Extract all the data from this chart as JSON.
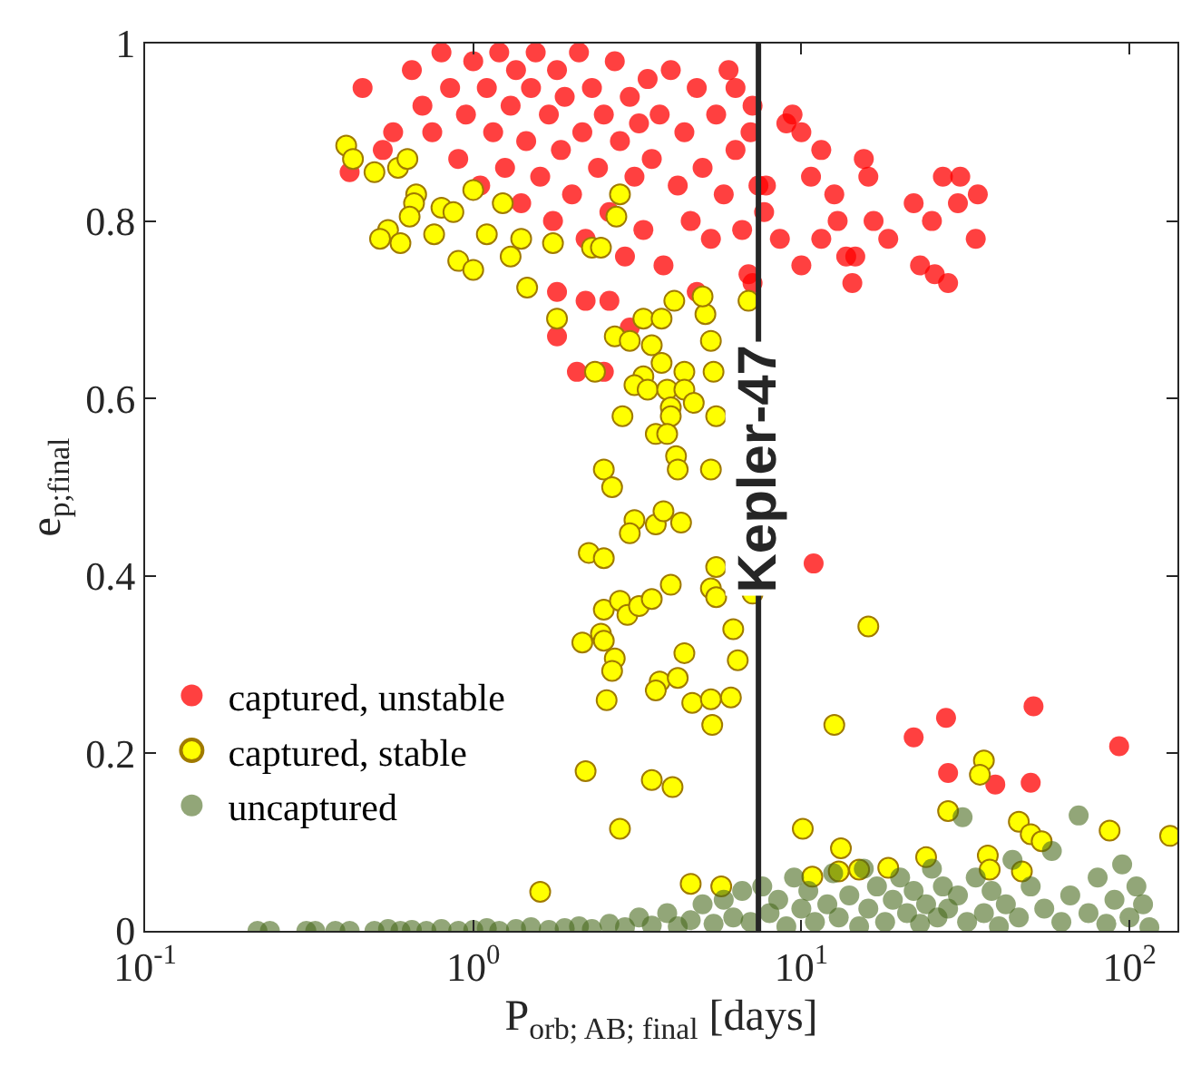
{
  "chart_data": {
    "type": "scatter",
    "xlabel": "P$_{orb; AB; final}$ [days]",
    "ylabel": "e$_{p;final}$",
    "log": "x",
    "xlim": [
      0.1,
      140
    ],
    "ylim": [
      0,
      1
    ],
    "xticks": [
      {
        "value": 0.1,
        "label": "10$^{-1}$"
      },
      {
        "value": 1,
        "label": "10$^{0}$"
      },
      {
        "value": 10,
        "label": "10$^{1}$"
      },
      {
        "value": 100,
        "label": "10$^{2}$"
      }
    ],
    "yticks": [
      0,
      0.2,
      0.4,
      0.6,
      0.8,
      1
    ],
    "grid": false,
    "legend": "bottom left",
    "marker": "circle",
    "ref_lines": [
      {
        "axis": "x",
        "value": 7.4,
        "label": "Kepler-47",
        "color": "#262626"
      }
    ],
    "series": [
      {
        "name": "captured, unstable",
        "color": "#ff0000",
        "x": [
          0.46,
          0.42,
          0.53,
          0.57,
          0.65,
          0.7,
          0.75,
          0.8,
          0.85,
          0.9,
          0.95,
          1.0,
          1.05,
          1.1,
          1.15,
          1.2,
          1.25,
          1.3,
          1.35,
          1.4,
          1.45,
          1.5,
          1.55,
          1.6,
          1.7,
          1.75,
          1.8,
          1.85,
          1.9,
          2.0,
          2.1,
          2.15,
          2.2,
          2.3,
          2.4,
          2.5,
          2.6,
          2.7,
          2.8,
          2.9,
          3.0,
          3.1,
          3.2,
          3.3,
          3.4,
          3.5,
          3.7,
          3.8,
          4.0,
          4.2,
          4.4,
          4.6,
          4.8,
          5.0,
          5.3,
          5.5,
          5.8,
          6.0,
          6.3,
          6.6,
          7.0,
          7.4,
          1.8,
          2.07,
          2.2,
          2.6,
          3.0,
          2.5,
          4.8,
          6.9,
          1.8,
          15.5,
          27,
          30.5,
          34.5,
          30,
          34,
          25,
          28,
          25.5,
          23,
          22,
          18.4,
          16.6,
          14.3,
          14.6,
          12.6,
          11.5,
          10,
          9,
          9.4,
          6.3,
          7.1,
          10.7,
          11.5,
          10,
          8.6,
          7.1,
          7.7,
          7.8,
          13.7,
          16,
          12.9,
          10.9,
          22,
          27.6,
          28,
          39,
          50,
          51,
          93
        ],
        "values": [
          0.95,
          0.855,
          0.88,
          0.9,
          0.97,
          0.93,
          0.9,
          0.99,
          0.95,
          0.87,
          0.92,
          0.98,
          0.84,
          0.95,
          0.9,
          0.99,
          0.86,
          0.93,
          0.97,
          0.82,
          0.89,
          0.95,
          0.99,
          0.85,
          0.92,
          0.8,
          0.97,
          0.88,
          0.94,
          0.83,
          0.99,
          0.9,
          0.78,
          0.95,
          0.86,
          0.92,
          0.81,
          0.98,
          0.89,
          0.76,
          0.94,
          0.85,
          0.91,
          0.79,
          0.96,
          0.87,
          0.92,
          0.75,
          0.97,
          0.84,
          0.9,
          0.8,
          0.95,
          0.86,
          0.78,
          0.92,
          0.83,
          0.97,
          0.88,
          0.79,
          0.9,
          0.84,
          0.67,
          0.63,
          0.71,
          0.71,
          0.68,
          0.63,
          0.72,
          0.74,
          0.72,
          0.87,
          0.85,
          0.85,
          0.83,
          0.82,
          0.78,
          0.8,
          0.73,
          0.74,
          0.75,
          0.82,
          0.78,
          0.8,
          0.73,
          0.76,
          0.83,
          0.88,
          0.9,
          0.91,
          0.92,
          0.95,
          0.93,
          0.85,
          0.78,
          0.75,
          0.78,
          0.73,
          0.81,
          0.84,
          0.76,
          0.85,
          0.8,
          0.414,
          0.218,
          0.24,
          0.178,
          0.165,
          0.167,
          0.253,
          0.208
        ]
      },
      {
        "name": "captured, stable",
        "color": "#ffff00",
        "x": [
          0.41,
          0.43,
          0.5,
          0.59,
          0.63,
          0.67,
          0.66,
          0.64,
          0.55,
          0.52,
          0.6,
          0.76,
          0.9,
          1.0,
          0.8,
          0.87,
          1.0,
          1.1,
          1.3,
          1.4,
          1.23,
          1.46,
          1.75,
          1.8,
          2.3,
          2.45,
          2.8,
          2.73,
          2.7,
          3.0,
          3.3,
          3.5,
          3.75,
          4.1,
          5.1,
          5.3,
          5.0,
          5.4,
          3.75,
          3.3,
          3.1,
          3.4,
          3.9,
          4.4,
          4.4,
          4.0,
          4.7,
          2.85,
          5.5,
          4.0,
          3.6,
          3.9,
          4.15,
          4.2,
          5.3,
          2.5,
          2.65,
          6.9,
          2.35,
          3.1,
          3.0,
          3.6,
          3.8,
          4.3,
          2.25,
          2.5,
          5.5,
          5.3,
          5.5,
          2.5,
          2.8,
          2.95,
          3.2,
          3.5,
          4.0,
          2.45,
          2.15,
          2.5,
          2.7,
          2.65,
          4.4,
          6.2,
          6.4,
          3.7,
          3.6,
          4.2,
          2.55,
          4.65,
          5.3,
          6.1,
          5.35,
          2.2,
          3.5,
          4.05,
          2.8,
          1.6,
          4.6,
          5.7,
          7.1,
          16,
          12.6,
          10.1,
          13.2,
          10.8,
          13,
          15,
          18.4,
          24,
          28,
          36,
          35,
          46,
          50,
          54,
          37,
          37.5,
          47,
          87,
          133
        ],
        "values": [
          0.885,
          0.87,
          0.855,
          0.86,
          0.87,
          0.83,
          0.82,
          0.805,
          0.79,
          0.78,
          0.775,
          0.785,
          0.755,
          0.745,
          0.815,
          0.81,
          0.835,
          0.785,
          0.76,
          0.78,
          0.82,
          0.725,
          0.775,
          0.69,
          0.77,
          0.77,
          0.83,
          0.805,
          0.67,
          0.665,
          0.69,
          0.66,
          0.69,
          0.71,
          0.695,
          0.665,
          0.715,
          0.63,
          0.64,
          0.625,
          0.615,
          0.61,
          0.61,
          0.63,
          0.61,
          0.59,
          0.595,
          0.58,
          0.58,
          0.58,
          0.56,
          0.56,
          0.535,
          0.52,
          0.52,
          0.52,
          0.5,
          0.71,
          0.63,
          0.463,
          0.448,
          0.458,
          0.473,
          0.46,
          0.426,
          0.42,
          0.41,
          0.386,
          0.376,
          0.362,
          0.372,
          0.356,
          0.366,
          0.374,
          0.39,
          0.335,
          0.325,
          0.327,
          0.307,
          0.293,
          0.313,
          0.34,
          0.305,
          0.281,
          0.271,
          0.285,
          0.26,
          0.257,
          0.261,
          0.263,
          0.232,
          0.18,
          0.17,
          0.162,
          0.115,
          0.044,
          0.053,
          0.05,
          0.38,
          0.343,
          0.232,
          0.115,
          0.093,
          0.061,
          0.067,
          0.069,
          0.071,
          0.083,
          0.135,
          0.192,
          0.176,
          0.123,
          0.109,
          0.101,
          0.085,
          0.069,
          0.067,
          0.113,
          0.107
        ]
      },
      {
        "name": "uncaptured",
        "color": "#4a6b1e",
        "x": [
          0.22,
          0.24,
          0.31,
          0.33,
          0.38,
          0.42,
          0.5,
          0.55,
          0.6,
          0.65,
          0.72,
          0.8,
          0.9,
          1.0,
          1.1,
          1.2,
          1.35,
          1.5,
          1.7,
          1.9,
          2.1,
          2.3,
          2.6,
          2.9,
          3.2,
          3.5,
          3.9,
          4.2,
          4.6,
          5.0,
          5.4,
          5.8,
          6.2,
          6.6,
          7.0,
          7.6,
          8.0,
          8.5,
          9.0,
          9.5,
          10,
          10.5,
          11,
          12,
          12.5,
          13,
          14,
          15,
          15.5,
          16,
          17,
          18,
          19,
          20,
          21,
          22,
          23,
          24,
          25,
          26,
          27,
          28,
          30,
          31,
          32,
          34,
          36,
          38,
          40,
          42,
          44,
          46,
          50,
          55,
          58,
          62,
          66,
          70,
          75,
          80,
          85,
          90,
          95,
          100,
          105,
          110,
          115
        ],
        "values": [
          0,
          0,
          0,
          0,
          0,
          0,
          0,
          0.002,
          0,
          0.001,
          0,
          0.002,
          0,
          0.001,
          0.003,
          0,
          0.002,
          0.004,
          0.001,
          0.003,
          0.005,
          0.002,
          0.008,
          0.004,
          0.015,
          0.006,
          0.02,
          0.005,
          0.012,
          0.03,
          0.008,
          0.035,
          0.015,
          0.045,
          0.01,
          0.05,
          0.02,
          0.035,
          0.005,
          0.06,
          0.025,
          0.045,
          0.01,
          0.03,
          0.065,
          0.015,
          0.04,
          0.005,
          0.07,
          0.025,
          0.05,
          0.01,
          0.035,
          0.06,
          0.02,
          0.045,
          0.008,
          0.03,
          0.07,
          0.015,
          0.05,
          0.025,
          0.04,
          0.128,
          0.01,
          0.06,
          0.02,
          0.045,
          0.005,
          0.03,
          0.08,
          0.015,
          0.05,
          0.025,
          0.09,
          0.01,
          0.04,
          0.13,
          0.02,
          0.06,
          0.008,
          0.035,
          0.075,
          0.015,
          0.05,
          0.03,
          0.004
        ]
      }
    ]
  }
}
